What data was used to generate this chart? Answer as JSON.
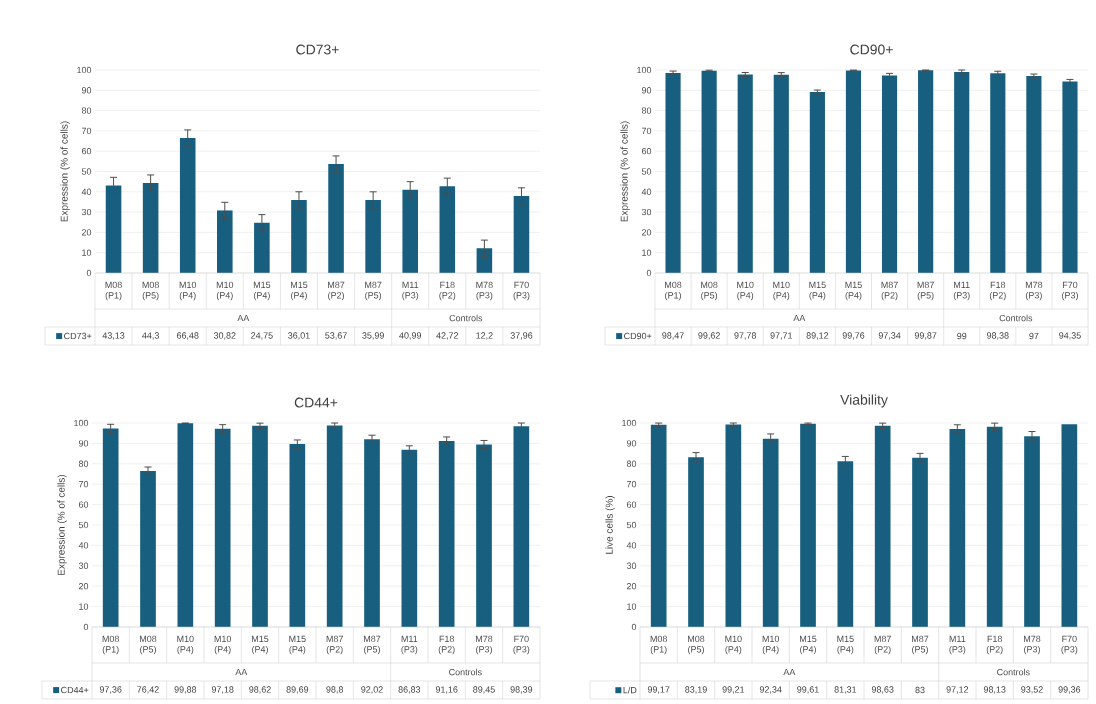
{
  "chart_data": [
    {
      "type": "bar",
      "title": "CD73+",
      "ylabel": "Expression (% of cells)",
      "categories": [
        "M08 (P1)",
        "M08 (P5)",
        "M10 (P4)",
        "M10 (P4)",
        "M15 (P4)",
        "M15 (P4)",
        "M87 (P2)",
        "M87 (P5)",
        "M11 (P3)",
        "F18 (P2)",
        "M78 (P3)",
        "F70 (P3)"
      ],
      "annotations": [
        "AA",
        "Controls"
      ],
      "series": [
        {
          "name": "CD73+",
          "color": "#185f7f",
          "values": [
            43.13,
            44.3,
            66.48,
            30.82,
            24.75,
            36.01,
            53.67,
            35.99,
            40.99,
            42.72,
            12.2,
            37.96
          ],
          "errors": [
            4,
            4,
            4,
            4,
            4,
            4,
            4,
            4,
            4,
            4,
            4,
            4
          ],
          "value_labels": [
            "43,13",
            "44,3",
            "66,48",
            "30,82",
            "24,75",
            "36,01",
            "53,67",
            "35,99",
            "40,99",
            "42,72",
            "12,2",
            "37,96"
          ]
        }
      ],
      "ylim": [
        0,
        100
      ],
      "yticks": [
        0,
        10,
        20,
        30,
        40,
        50,
        60,
        70,
        80,
        90,
        100
      ],
      "grid": "y"
    },
    {
      "type": "bar",
      "title": "CD90+",
      "ylabel": "Expression (% of cells)",
      "categories": [
        "M08 (P1)",
        "M08 (P5)",
        "M10 (P4)",
        "M10 (P4)",
        "M15 (P4)",
        "M15 (P4)",
        "M87 (P2)",
        "M87 (P5)",
        "M11 (P3)",
        "F18 (P2)",
        "M78 (P3)",
        "F70 (P3)"
      ],
      "annotations": [
        "AA",
        "Controls"
      ],
      "series": [
        {
          "name": "CD90+",
          "color": "#185f7f",
          "values": [
            98.47,
            99.62,
            97.78,
            97.71,
            89.12,
            99.76,
            97.34,
            99.87,
            99,
            98.38,
            97,
            94.35
          ],
          "errors": [
            1,
            0.3,
            1,
            1,
            1,
            0.2,
            1,
            0.1,
            1,
            1,
            1,
            1
          ],
          "value_labels": [
            "98,47",
            "99,62",
            "97,78",
            "97,71",
            "89,12",
            "99,76",
            "97,34",
            "99,87",
            "99",
            "98,38",
            "97",
            "94,35"
          ]
        }
      ],
      "ylim": [
        0,
        100
      ],
      "yticks": [
        0,
        10,
        20,
        30,
        40,
        50,
        60,
        70,
        80,
        90,
        100
      ],
      "grid": "y"
    },
    {
      "type": "bar",
      "title": "CD44+",
      "ylabel": "Expression (% of cells)",
      "categories": [
        "M08 (P1)",
        "M08 (P5)",
        "M10 (P4)",
        "M10 (P4)",
        "M15 (P4)",
        "M15 (P4)",
        "M87 (P2)",
        "M87 (P5)",
        "M11 (P3)",
        "F18 (P2)",
        "M78 (P3)",
        "F70 (P3)"
      ],
      "annotations": [
        "AA",
        "Controls"
      ],
      "series": [
        {
          "name": "CD44+",
          "color": "#185f7f",
          "values": [
            97.36,
            76.42,
            99.88,
            97.18,
            98.62,
            89.69,
            98.8,
            92.02,
            86.83,
            91.16,
            89.45,
            98.39
          ],
          "errors": [
            2,
            2,
            0.1,
            2,
            1.3,
            2,
            1.2,
            2,
            2,
            2,
            2,
            1.6
          ],
          "value_labels": [
            "97,36",
            "76,42",
            "99,88",
            "97,18",
            "98,62",
            "89,69",
            "98,8",
            "92,02",
            "86,83",
            "91,16",
            "89,45",
            "98,39"
          ]
        }
      ],
      "ylim": [
        0,
        100
      ],
      "yticks": [
        0,
        10,
        20,
        30,
        40,
        50,
        60,
        70,
        80,
        90,
        100
      ],
      "grid": "y"
    },
    {
      "type": "bar",
      "title": "Viability",
      "ylabel": "Live cells (%)",
      "categories": [
        "M08 (P1)",
        "M08 (P5)",
        "M10 (P4)",
        "M10 (P4)",
        "M15 (P4)",
        "M15 (P4)",
        "M87 (P2)",
        "M87 (P5)",
        "M11 (P3)",
        "F18 (P2)",
        "M78 (P3)",
        "F70 (P3)"
      ],
      "annotations": [
        "AA",
        "Controls"
      ],
      "series": [
        {
          "name": "L/D",
          "color": "#185f7f",
          "values": [
            99.17,
            83.19,
            99.21,
            92.34,
            99.61,
            81.31,
            98.63,
            83,
            97.12,
            98.13,
            93.52,
            99.36
          ],
          "errors": [
            0.8,
            2.3,
            0.79,
            2.3,
            0.35,
            2.3,
            1.3,
            2.1,
            2,
            1.8,
            2.3,
            null
          ],
          "value_labels": [
            "99,17",
            "83,19",
            "99,21",
            "92,34",
            "99,61",
            "81,31",
            "98,63",
            "83",
            "97,12",
            "98,13",
            "93,52",
            "99,36"
          ]
        }
      ],
      "ylim": [
        0,
        100
      ],
      "yticks": [
        0,
        10,
        20,
        30,
        40,
        50,
        60,
        70,
        80,
        90,
        100
      ],
      "grid": "y"
    }
  ]
}
